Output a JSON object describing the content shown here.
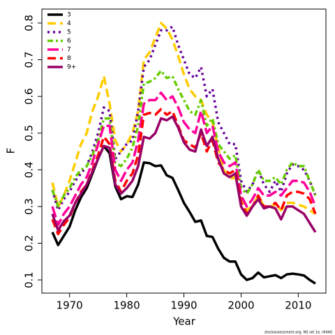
{
  "chart_data": {
    "type": "line",
    "x_label": "Year",
    "y_label": "F",
    "footnote": "stockassessment.org, NS sel 1e, r6440",
    "x": [
      1967,
      1968,
      1969,
      1970,
      1971,
      1972,
      1973,
      1974,
      1975,
      1976,
      1977,
      1978,
      1979,
      1980,
      1981,
      1982,
      1983,
      1984,
      1985,
      1986,
      1987,
      1988,
      1989,
      1990,
      1991,
      1992,
      1993,
      1994,
      1995,
      1996,
      1997,
      1998,
      1999,
      2000,
      2001,
      2002,
      2003,
      2004,
      2005,
      2006,
      2007,
      2008,
      2009,
      2010,
      2011,
      2012,
      2013
    ],
    "xlim": [
      1965.16,
      2014.84
    ],
    "xticks": [
      1970,
      1980,
      1990,
      2000,
      2010
    ],
    "ylim": [
      0.064,
      0.838
    ],
    "yticks": [
      0.1,
      0.2,
      0.3,
      0.4,
      0.5,
      0.6,
      0.7,
      0.8
    ],
    "legend": "top-left",
    "series": [
      {
        "name": "3",
        "color": "#000000",
        "linetype": "solid",
        "values": [
          0.23,
          0.195,
          0.22,
          0.245,
          0.29,
          0.325,
          0.35,
          0.39,
          0.43,
          0.465,
          0.445,
          0.355,
          0.32,
          0.328,
          0.326,
          0.36,
          0.42,
          0.418,
          0.41,
          0.412,
          0.385,
          0.378,
          0.345,
          0.31,
          0.285,
          0.258,
          0.262,
          0.22,
          0.217,
          0.185,
          0.16,
          0.15,
          0.15,
          0.115,
          0.1,
          0.105,
          0.12,
          0.107,
          0.11,
          0.113,
          0.105,
          0.115,
          0.117,
          0.115,
          0.112,
          0.1,
          0.09
        ]
      },
      {
        "name": "4",
        "color": "#FFCC00",
        "linetype": "dashed",
        "values": [
          0.365,
          0.3,
          0.33,
          0.37,
          0.42,
          0.47,
          0.5,
          0.56,
          0.6,
          0.655,
          0.58,
          0.48,
          0.45,
          0.47,
          0.5,
          0.56,
          0.7,
          0.72,
          0.76,
          0.8,
          0.785,
          0.755,
          0.71,
          0.66,
          0.62,
          0.6,
          0.59,
          0.55,
          0.53,
          0.46,
          0.4,
          0.375,
          0.38,
          0.32,
          0.29,
          0.3,
          0.33,
          0.3,
          0.3,
          0.305,
          0.29,
          0.31,
          0.31,
          0.305,
          0.3,
          0.29,
          0.28
        ]
      },
      {
        "name": "5",
        "color": "#660099",
        "linetype": "dotted",
        "values": [
          0.345,
          0.29,
          0.32,
          0.34,
          0.37,
          0.39,
          0.41,
          0.45,
          0.5,
          0.57,
          0.56,
          0.43,
          0.45,
          0.47,
          0.48,
          0.56,
          0.68,
          0.7,
          0.74,
          0.78,
          0.78,
          0.79,
          0.74,
          0.7,
          0.66,
          0.65,
          0.68,
          0.6,
          0.62,
          0.53,
          0.5,
          0.47,
          0.47,
          0.37,
          0.34,
          0.36,
          0.4,
          0.36,
          0.34,
          0.37,
          0.34,
          0.39,
          0.415,
          0.41,
          0.4,
          0.37,
          0.33
        ]
      },
      {
        "name": "6",
        "color": "#66CC00",
        "linetype": "dotdash",
        "values": [
          0.345,
          0.3,
          0.33,
          0.35,
          0.38,
          0.4,
          0.41,
          0.44,
          0.48,
          0.54,
          0.54,
          0.42,
          0.41,
          0.43,
          0.46,
          0.52,
          0.635,
          0.64,
          0.65,
          0.67,
          0.65,
          0.655,
          0.62,
          0.59,
          0.56,
          0.55,
          0.59,
          0.52,
          0.54,
          0.47,
          0.45,
          0.43,
          0.44,
          0.35,
          0.335,
          0.36,
          0.4,
          0.37,
          0.37,
          0.38,
          0.36,
          0.4,
          0.42,
          0.41,
          0.41,
          0.37,
          0.33
        ]
      },
      {
        "name": "7",
        "color": "#FF0099",
        "linetype": "longdash",
        "values": [
          0.3,
          0.25,
          0.28,
          0.3,
          0.33,
          0.36,
          0.38,
          0.42,
          0.47,
          0.52,
          0.52,
          0.4,
          0.37,
          0.4,
          0.42,
          0.48,
          0.58,
          0.59,
          0.59,
          0.61,
          0.59,
          0.6,
          0.57,
          0.53,
          0.51,
          0.5,
          0.56,
          0.5,
          0.52,
          0.45,
          0.42,
          0.41,
          0.42,
          0.33,
          0.3,
          0.32,
          0.35,
          0.33,
          0.33,
          0.34,
          0.33,
          0.35,
          0.37,
          0.37,
          0.365,
          0.34,
          0.3
        ]
      },
      {
        "name": "8",
        "color": "#FF0000",
        "linetype": "dashed",
        "values": [
          0.265,
          0.225,
          0.25,
          0.27,
          0.31,
          0.34,
          0.36,
          0.4,
          0.44,
          0.49,
          0.47,
          0.37,
          0.34,
          0.37,
          0.39,
          0.44,
          0.55,
          0.555,
          0.55,
          0.565,
          0.55,
          0.56,
          0.52,
          0.48,
          0.47,
          0.46,
          0.5,
          0.45,
          0.48,
          0.42,
          0.4,
          0.39,
          0.4,
          0.31,
          0.28,
          0.3,
          0.33,
          0.3,
          0.3,
          0.31,
          0.29,
          0.33,
          0.34,
          0.34,
          0.335,
          0.32,
          0.28
        ]
      },
      {
        "name": "9+",
        "color": "#990066",
        "linetype": "solid",
        "values": [
          0.28,
          0.235,
          0.26,
          0.275,
          0.31,
          0.335,
          0.36,
          0.395,
          0.43,
          0.465,
          0.46,
          0.36,
          0.335,
          0.35,
          0.37,
          0.41,
          0.49,
          0.485,
          0.5,
          0.54,
          0.535,
          0.545,
          0.515,
          0.475,
          0.455,
          0.45,
          0.51,
          0.465,
          0.49,
          0.43,
          0.39,
          0.38,
          0.39,
          0.3,
          0.275,
          0.3,
          0.32,
          0.295,
          0.3,
          0.295,
          0.265,
          0.3,
          0.3,
          0.29,
          0.28,
          0.255,
          0.23
        ]
      }
    ]
  }
}
